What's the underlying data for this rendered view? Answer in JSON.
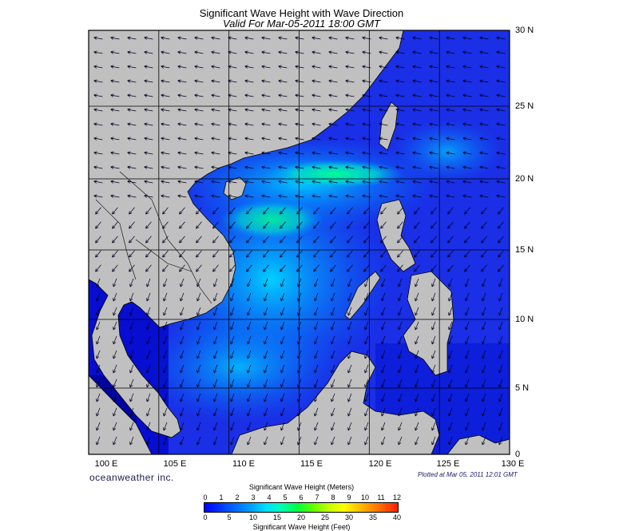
{
  "title": "Significant Wave Height with Wave Direction",
  "subtitle": "Valid For Mar-05-2011 18:00 GMT",
  "longitude_labels": [
    "100 E",
    "105 E",
    "110 E",
    "115 E",
    "120 E",
    "125 E",
    "130 E"
  ],
  "latitude_labels": [
    "30 N",
    "25 N",
    "20 N",
    "15 N",
    "10 N",
    "5 N",
    "0"
  ],
  "brand": "oceanweather inc.",
  "plotted_note": "Plotted at Mar 05, 2011 12:01 GMT",
  "colorbar": {
    "meters_title": "Significant Wave Height (Meters)",
    "feet_title": "Significant Wave Height (Feet)",
    "meters_ticks": [
      "0",
      "1",
      "2",
      "3",
      "4",
      "5",
      "6",
      "7",
      "8",
      "9",
      "10",
      "11",
      "12"
    ],
    "feet_ticks": [
      "0",
      "5",
      "10",
      "15",
      "20",
      "25",
      "30",
      "35",
      "40"
    ]
  },
  "colors": {
    "land": "#c0c0c0",
    "low_wave": "#0000ee",
    "mid_wave": "#00a0ff",
    "high_wave": "#00ff80",
    "arrow": "#000033"
  },
  "map": {
    "lon_range": [
      100,
      130
    ],
    "lat_range": [
      0,
      30
    ],
    "wave_direction": "north-east to south-west",
    "max_wave_height_m": 4.5
  }
}
